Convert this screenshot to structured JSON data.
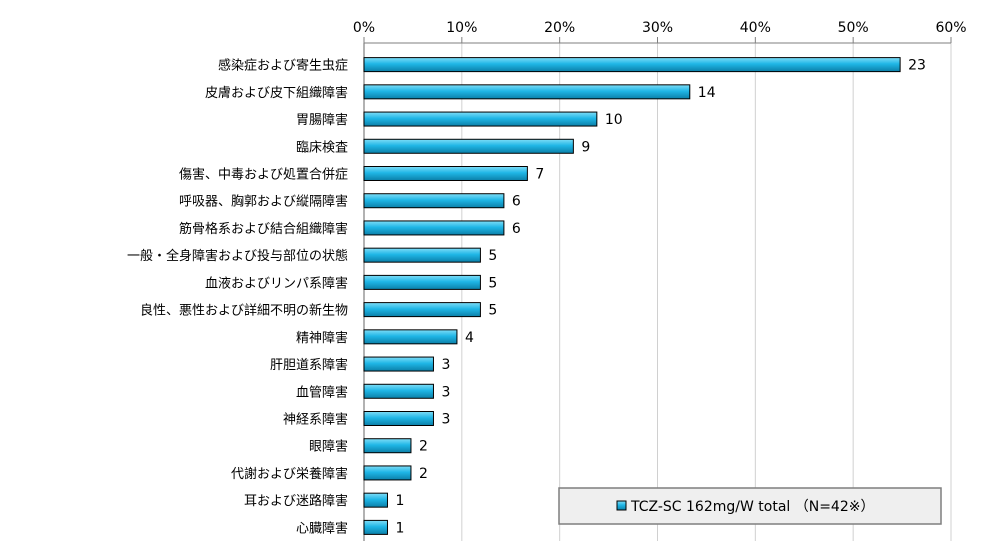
{
  "chart_data": {
    "type": "bar",
    "orientation": "horizontal",
    "categories": [
      "感染症および寄生虫症",
      "皮膚および皮下組織障害",
      "胃腸障害",
      "臨床検査",
      "傷害、中毒および処置合併症",
      "呼吸器、胸郭および縦隔障害",
      "筋骨格系および結合組織障害",
      "一般・全身障害および投与部位の状態",
      "血液およびリンパ系障害",
      "良性、悪性および詳細不明の新生物",
      "精神障害",
      "肝胆道系障害",
      "血管障害",
      "神経系障害",
      "眼障害",
      "代謝および栄養障害",
      "耳および迷路障害",
      "心臓障害"
    ],
    "series": [
      {
        "name": "TCZ-SC 162mg/W total （N=42※）",
        "values": [
          54.8,
          33.3,
          23.8,
          21.4,
          16.7,
          14.3,
          14.3,
          11.9,
          11.9,
          11.9,
          9.5,
          7.1,
          7.1,
          7.1,
          4.8,
          4.8,
          2.4,
          2.4
        ],
        "labels": [
          "23",
          "14",
          "10",
          "9",
          "7",
          "6",
          "6",
          "5",
          "5",
          "5",
          "4",
          "3",
          "3",
          "3",
          "2",
          "2",
          "1",
          "1"
        ],
        "color": "#1FB6E6"
      }
    ],
    "xlim": [
      0,
      60
    ],
    "xticks": [
      "0%",
      "10%",
      "20%",
      "30%",
      "40%",
      "50%",
      "60%"
    ],
    "grid": true,
    "legend_position": "bottom-right",
    "legend_text": "TCZ-SC 162mg/W total （N=42※）"
  }
}
